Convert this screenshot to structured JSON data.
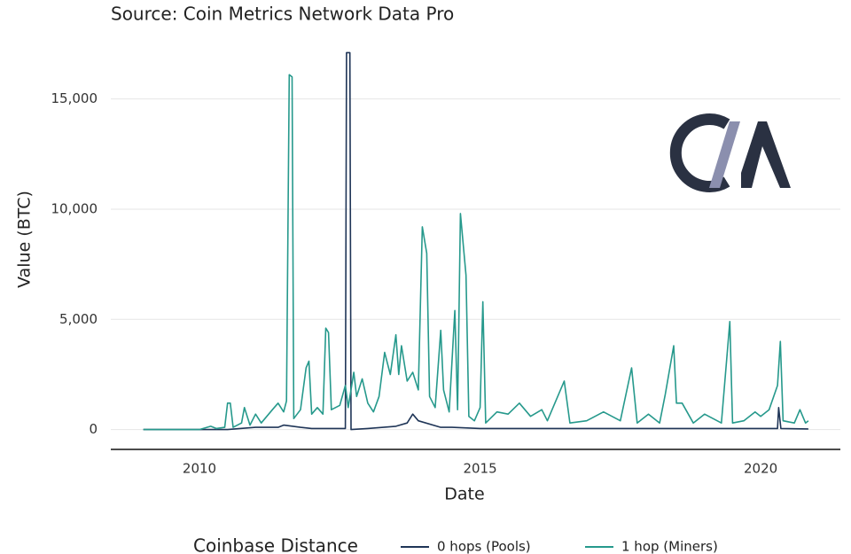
{
  "chart_data": {
    "type": "line",
    "subtitle": "Source: Coin Metrics Network Data Pro",
    "x_label": "Date",
    "y_label": "Value (BTC)",
    "legend_title": "Coinbase Distance",
    "xlim": [
      2008.42,
      2021.42
    ],
    "xticks": [
      2010,
      2015,
      2020
    ],
    "ylim": [
      -900,
      17800
    ],
    "yticks": [
      0,
      {
        "value": 5000,
        "label": "5,000"
      },
      {
        "value": 10000,
        "label": "10,000"
      },
      {
        "value": 15000,
        "label": "15,000"
      }
    ],
    "grid": true,
    "series": [
      {
        "name": "0 hops (Pools)",
        "color": "#1f3557",
        "x": [
          2009.0,
          2010.5,
          2011.0,
          2011.4,
          2011.5,
          2011.8,
          2012.0,
          2012.6,
          2012.62,
          2012.68,
          2012.7,
          2013.0,
          2013.5,
          2013.7,
          2013.8,
          2013.9,
          2014.3,
          2014.5,
          2015.0,
          2016.0,
          2018.0,
          2020.0,
          2020.3,
          2020.32,
          2020.36,
          2020.85
        ],
        "values": [
          0,
          0,
          100,
          100,
          200,
          100,
          50,
          50,
          17100,
          17100,
          0,
          50,
          150,
          300,
          700,
          400,
          100,
          100,
          50,
          50,
          50,
          50,
          50,
          1000,
          50,
          30
        ]
      },
      {
        "name": "1 hop (Miners)",
        "color": "#26998c",
        "x": [
          2009.0,
          2009.5,
          2010.0,
          2010.2,
          2010.3,
          2010.45,
          2010.5,
          2010.55,
          2010.6,
          2010.75,
          2010.8,
          2010.9,
          2011.0,
          2011.1,
          2011.2,
          2011.3,
          2011.4,
          2011.5,
          2011.55,
          2011.6,
          2011.65,
          2011.68,
          2011.8,
          2011.9,
          2011.95,
          2012.0,
          2012.1,
          2012.2,
          2012.25,
          2012.3,
          2012.35,
          2012.5,
          2012.6,
          2012.65,
          2012.75,
          2012.8,
          2012.9,
          2013.0,
          2013.1,
          2013.2,
          2013.3,
          2013.4,
          2013.5,
          2013.55,
          2013.6,
          2013.7,
          2013.8,
          2013.9,
          2013.97,
          2014.05,
          2014.1,
          2014.2,
          2014.3,
          2014.35,
          2014.45,
          2014.55,
          2014.6,
          2014.65,
          2014.75,
          2014.8,
          2014.9,
          2015.0,
          2015.05,
          2015.1,
          2015.3,
          2015.5,
          2015.7,
          2015.9,
          2016.1,
          2016.2,
          2016.5,
          2016.6,
          2016.9,
          2017.2,
          2017.5,
          2017.7,
          2017.8,
          2018.0,
          2018.2,
          2018.3,
          2018.45,
          2018.5,
          2018.6,
          2018.8,
          2019.0,
          2019.3,
          2019.45,
          2019.5,
          2019.7,
          2019.9,
          2020.0,
          2020.15,
          2020.3,
          2020.35,
          2020.4,
          2020.6,
          2020.7,
          2020.8,
          2020.85
        ],
        "values": [
          0,
          0,
          0,
          150,
          50,
          100,
          1200,
          1200,
          100,
          300,
          1000,
          200,
          700,
          300,
          600,
          900,
          1200,
          800,
          1300,
          16100,
          16000,
          500,
          900,
          2800,
          3100,
          700,
          1000,
          700,
          4600,
          4400,
          900,
          1100,
          2000,
          1000,
          2600,
          1500,
          2300,
          1200,
          800,
          1500,
          3500,
          2500,
          4300,
          2500,
          3800,
          2200,
          2600,
          1800,
          9200,
          8000,
          1500,
          1000,
          4500,
          1800,
          800,
          5400,
          900,
          9800,
          7000,
          600,
          400,
          1000,
          5800,
          300,
          800,
          700,
          1200,
          600,
          900,
          400,
          2200,
          300,
          400,
          800,
          400,
          2800,
          300,
          700,
          300,
          1600,
          3800,
          1200,
          1200,
          300,
          700,
          300,
          4900,
          300,
          400,
          800,
          600,
          900,
          2000,
          4000,
          400,
          300,
          900,
          300,
          400
        ]
      }
    ]
  }
}
